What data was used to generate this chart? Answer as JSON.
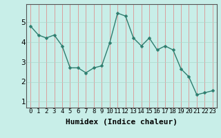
{
  "x": [
    0,
    1,
    2,
    3,
    4,
    5,
    6,
    7,
    8,
    9,
    10,
    11,
    12,
    13,
    14,
    15,
    16,
    17,
    18,
    19,
    20,
    21,
    22,
    23
  ],
  "y": [
    4.8,
    4.35,
    4.2,
    4.35,
    3.8,
    2.7,
    2.7,
    2.45,
    2.7,
    2.8,
    3.95,
    5.45,
    5.3,
    4.2,
    3.8,
    4.2,
    3.6,
    3.8,
    3.6,
    2.65,
    2.25,
    1.35,
    1.45,
    1.55
  ],
  "line_color": "#2e7d6e",
  "marker": "D",
  "marker_size": 2.5,
  "line_width": 1.0,
  "xlabel": "Humidex (Indice chaleur)",
  "ylim": [
    0.7,
    5.9
  ],
  "xlim": [
    -0.5,
    23.5
  ],
  "yticks": [
    1,
    2,
    3,
    4,
    5
  ],
  "xtick_labels": [
    "0",
    "1",
    "2",
    "3",
    "4",
    "5",
    "6",
    "7",
    "8",
    "9",
    "10",
    "11",
    "12",
    "13",
    "14",
    "15",
    "16",
    "17",
    "18",
    "19",
    "20",
    "21",
    "22",
    "23"
  ],
  "bg_color": "#c8eee8",
  "grid_color_v": "#e08080",
  "grid_color_h": "#aad8cc",
  "axis_color": "#555555",
  "xlabel_fontsize": 8,
  "tick_fontsize": 6.5,
  "ytick_fontsize": 7.5
}
